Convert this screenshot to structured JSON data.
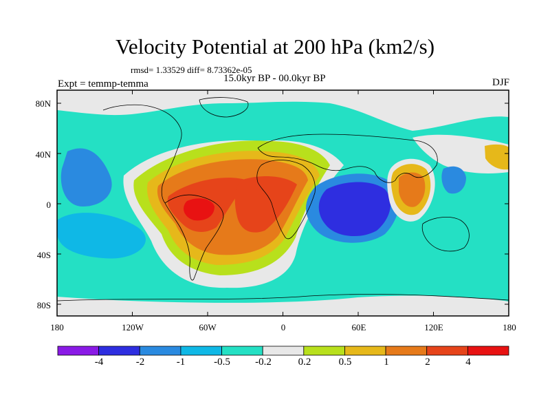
{
  "title": "Velocity Potential at 200 hPa (km2/s)",
  "stats": "rmsd= 1.33529 diff= 8.73362e-05",
  "period": "15.0kyr BP - 00.0kyr BP",
  "left_label": "Expt = temmp-temma",
  "right_label": "DJF",
  "lat_ticks": [
    "80N",
    "40N",
    "0",
    "40S",
    "80S"
  ],
  "lon_ticks": [
    "180",
    "120W",
    "60W",
    "0",
    "60E",
    "120E",
    "180"
  ],
  "colorbar": {
    "labels": [
      "-4",
      "-2",
      "-1",
      "-0.5",
      "-0.2",
      "0.2",
      "0.5",
      "1",
      "2",
      "4"
    ],
    "colors": [
      "#8a1ae6",
      "#2e2ee0",
      "#2a8ae0",
      "#0fb8e6",
      "#24e0c4",
      "#e8e8e8",
      "#b8e01c",
      "#e6b81a",
      "#e67a1a",
      "#e6441a",
      "#e81212"
    ]
  }
}
